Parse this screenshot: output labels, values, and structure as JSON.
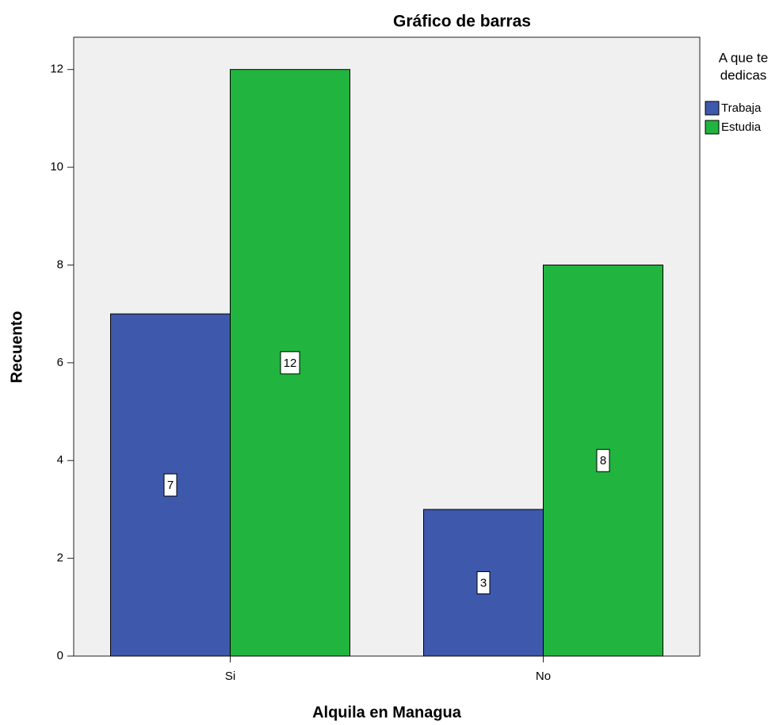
{
  "chart_data": {
    "type": "bar",
    "title": "Gráfico de barras",
    "x_label": "Alquila en Managua",
    "y_label": "Recuento",
    "legend_title": [
      "A que te",
      "dedicas"
    ],
    "categories": [
      "Si",
      "No"
    ],
    "series": [
      {
        "name": "Trabaja",
        "color": "#3e58ac",
        "values": [
          7,
          3
        ]
      },
      {
        "name": "Estudia",
        "color": "#21b43f",
        "values": [
          12,
          8
        ]
      }
    ],
    "ylim": [
      0,
      12.66
    ],
    "yticks": [
      0,
      2,
      4,
      6,
      8,
      10,
      12
    ],
    "grid": false,
    "legend": "right"
  }
}
